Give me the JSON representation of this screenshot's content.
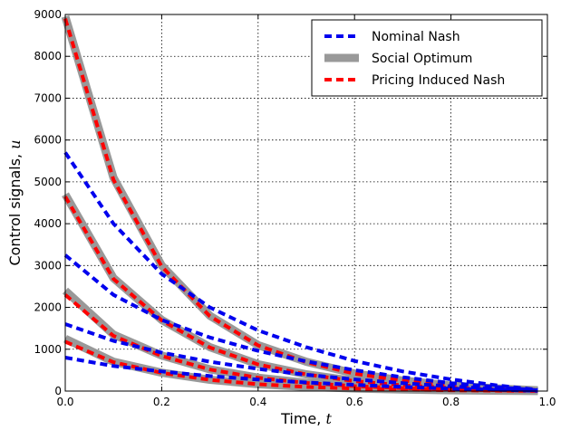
{
  "chart_data": {
    "type": "line",
    "title": "",
    "xlabel": "Time, t",
    "xlabel_parts": {
      "text": "Time, ",
      "symbol": "t"
    },
    "ylabel": "Control signals, u",
    "ylabel_parts": {
      "text": "Control signals, ",
      "symbol": "u"
    },
    "xlim": [
      0.0,
      1.0
    ],
    "ylim": [
      0,
      9000
    ],
    "xticks": [
      0.0,
      0.2,
      0.4,
      0.6,
      0.8,
      1.0
    ],
    "xtick_labels": [
      "0.0",
      "0.2",
      "0.4",
      "0.6",
      "0.8",
      "1.0"
    ],
    "yticks": [
      0,
      1000,
      2000,
      3000,
      4000,
      5000,
      6000,
      7000,
      8000,
      9000
    ],
    "ytick_labels": [
      "0",
      "1000",
      "2000",
      "3000",
      "4000",
      "5000",
      "6000",
      "7000",
      "8000",
      "9000"
    ],
    "grid": true,
    "legend_position": "top-right",
    "legend": [
      {
        "label": "Nominal Nash",
        "color": "#0000ee",
        "style": "dashed"
      },
      {
        "label": "Social Optimum",
        "color": "#999999",
        "style": "thick-solid"
      },
      {
        "label": "Pricing Induced Nash",
        "color": "#ff0000",
        "style": "dashed"
      }
    ],
    "x": [
      0.0,
      0.1,
      0.2,
      0.3,
      0.4,
      0.5,
      0.6,
      0.7,
      0.8,
      0.9,
      0.98
    ],
    "series": [
      {
        "group": "Social Optimum",
        "color": "#999999",
        "style": "thick-solid",
        "values": [
          8950,
          5100,
          3000,
          1800,
          1100,
          700,
          420,
          250,
          130,
          60,
          20
        ]
      },
      {
        "group": "Social Optimum",
        "color": "#999999",
        "style": "thick-solid",
        "values": [
          4700,
          2700,
          1700,
          1050,
          640,
          400,
          240,
          140,
          75,
          35,
          12
        ]
      },
      {
        "group": "Social Optimum",
        "color": "#999999",
        "style": "thick-solid",
        "values": [
          2400,
          1350,
          850,
          520,
          320,
          195,
          120,
          70,
          38,
          18,
          6
        ]
      },
      {
        "group": "Social Optimum",
        "color": "#999999",
        "style": "thick-solid",
        "values": [
          1250,
          700,
          440,
          270,
          165,
          100,
          62,
          37,
          20,
          9,
          3
        ]
      },
      {
        "group": "Pricing Induced Nash",
        "color": "#ff0000",
        "style": "dashed",
        "values": [
          8900,
          5050,
          2980,
          1790,
          1090,
          690,
          415,
          248,
          128,
          59,
          19
        ]
      },
      {
        "group": "Pricing Induced Nash",
        "color": "#ff0000",
        "style": "dashed",
        "values": [
          4650,
          2680,
          1690,
          1040,
          635,
          398,
          238,
          139,
          74,
          34,
          11
        ]
      },
      {
        "group": "Pricing Induced Nash",
        "color": "#ff0000",
        "style": "dashed",
        "values": [
          2300,
          1320,
          840,
          515,
          318,
          194,
          119,
          69,
          37,
          17,
          6
        ]
      },
      {
        "group": "Pricing Induced Nash",
        "color": "#ff0000",
        "style": "dashed",
        "values": [
          1180,
          690,
          435,
          268,
          164,
          99,
          61,
          36,
          19,
          9,
          3
        ]
      },
      {
        "group": "Nominal Nash",
        "color": "#0000ee",
        "style": "dashed",
        "values": [
          5700,
          4000,
          2800,
          2000,
          1450,
          1050,
          720,
          470,
          280,
          130,
          30
        ]
      },
      {
        "group": "Nominal Nash",
        "color": "#0000ee",
        "style": "dashed",
        "values": [
          3250,
          2300,
          1700,
          1280,
          960,
          710,
          500,
          330,
          190,
          90,
          20
        ]
      },
      {
        "group": "Nominal Nash",
        "color": "#0000ee",
        "style": "dashed",
        "values": [
          1600,
          1200,
          920,
          700,
          530,
          390,
          280,
          190,
          110,
          50,
          12
        ]
      },
      {
        "group": "Nominal Nash",
        "color": "#0000ee",
        "style": "dashed",
        "values": [
          800,
          600,
          470,
          360,
          275,
          205,
          150,
          100,
          60,
          28,
          6
        ]
      }
    ]
  }
}
